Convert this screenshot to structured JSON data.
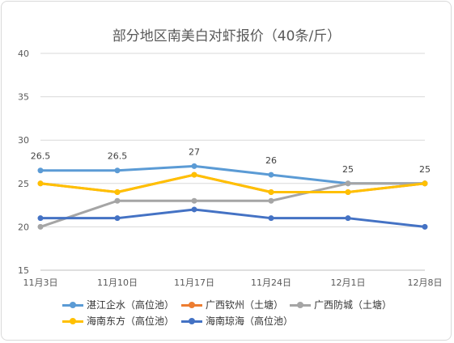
{
  "chart_data": {
    "type": "line",
    "title": "部分地区南美白对虾报价（40条/斤）",
    "xlabel": "",
    "ylabel": "",
    "categories": [
      "11月3日",
      "11月10日",
      "11月17日",
      "11月24日",
      "12月1日",
      "12月8日"
    ],
    "ylim": [
      15,
      40
    ],
    "yticks": [
      15,
      20,
      25,
      30,
      35,
      40
    ],
    "grid": true,
    "legend_position": "bottom",
    "series": [
      {
        "name": "湛江企水（高位池）",
        "color": "#5b9bd5",
        "values": [
          26.5,
          26.5,
          27,
          26,
          25,
          25
        ],
        "data_labels": [
          "26.5",
          "26.5",
          "27",
          "26",
          "25",
          "25"
        ]
      },
      {
        "name": "广西钦州（土塘）",
        "color": "#ed7d31",
        "values": [
          25,
          24,
          26,
          24,
          24,
          25
        ],
        "data_labels": []
      },
      {
        "name": "广西防城（土塘）",
        "color": "#a5a5a5",
        "values": [
          20,
          23,
          23,
          23,
          25,
          25
        ],
        "data_labels": []
      },
      {
        "name": "海南东方（高位池）",
        "color": "#ffc000",
        "values": [
          25,
          24,
          26,
          24,
          24,
          25
        ],
        "data_labels": []
      },
      {
        "name": "海南琼海（高位池）",
        "color": "#4472c4",
        "values": [
          21,
          21,
          22,
          21,
          21,
          20
        ],
        "data_labels": []
      }
    ]
  }
}
